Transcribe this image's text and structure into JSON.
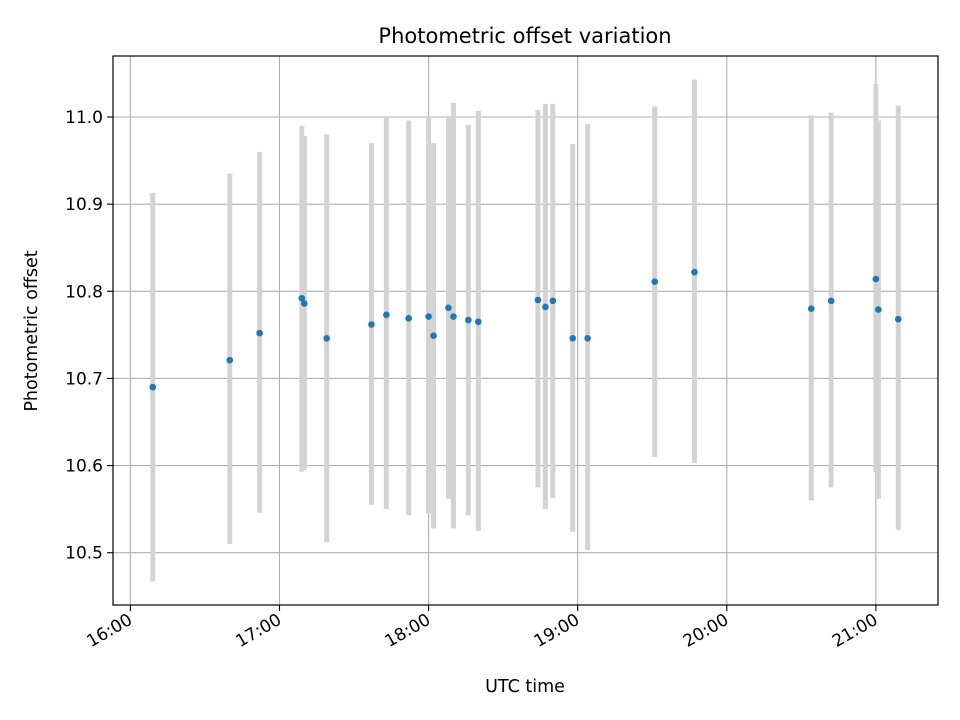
{
  "chart_data": {
    "type": "scatter",
    "title": "Photometric offset variation",
    "xlabel": "UTC time",
    "ylabel": "Photometric offset",
    "x_tick_labels": [
      "16:00",
      "17:00",
      "18:00",
      "19:00",
      "20:00",
      "21:00"
    ],
    "y_tick_labels": [
      "10.5",
      "10.6",
      "10.7",
      "10.8",
      "10.9",
      "11.0"
    ],
    "x_ticks": [
      "16:00",
      "17:00",
      "18:00",
      "19:00",
      "20:00",
      "21:00"
    ],
    "y_ticks": [
      10.5,
      10.6,
      10.7,
      10.8,
      10.9,
      11.0
    ],
    "xlim": [
      "15:53",
      "21:25"
    ],
    "ylim": [
      10.44,
      11.07
    ],
    "grid": true,
    "marker_color": "#1f77b4",
    "errorbar_color": "#d3d3d3",
    "points": [
      {
        "t": "16:09",
        "y": 10.69,
        "low": 10.467,
        "high": 10.913
      },
      {
        "t": "16:40",
        "y": 10.721,
        "low": 10.51,
        "high": 10.935
      },
      {
        "t": "16:52",
        "y": 10.752,
        "low": 10.546,
        "high": 10.96
      },
      {
        "t": "17:09",
        "y": 10.792,
        "low": 10.593,
        "high": 10.99
      },
      {
        "t": "17:10",
        "y": 10.786,
        "low": 10.595,
        "high": 10.978
      },
      {
        "t": "17:19",
        "y": 10.746,
        "low": 10.512,
        "high": 10.98
      },
      {
        "t": "17:37",
        "y": 10.762,
        "low": 10.555,
        "high": 10.97
      },
      {
        "t": "17:43",
        "y": 10.773,
        "low": 10.55,
        "high": 11.0
      },
      {
        "t": "17:52",
        "y": 10.769,
        "low": 10.543,
        "high": 10.996
      },
      {
        "t": "18:00",
        "y": 10.771,
        "low": 10.545,
        "high": 11.0
      },
      {
        "t": "18:02",
        "y": 10.749,
        "low": 10.528,
        "high": 10.97
      },
      {
        "t": "18:08",
        "y": 10.781,
        "low": 10.562,
        "high": 11.0
      },
      {
        "t": "18:10",
        "y": 10.771,
        "low": 10.528,
        "high": 11.016
      },
      {
        "t": "18:16",
        "y": 10.767,
        "low": 10.543,
        "high": 10.991
      },
      {
        "t": "18:20",
        "y": 10.765,
        "low": 10.525,
        "high": 11.007
      },
      {
        "t": "18:44",
        "y": 10.79,
        "low": 10.575,
        "high": 11.008
      },
      {
        "t": "18:47",
        "y": 10.782,
        "low": 10.55,
        "high": 11.015
      },
      {
        "t": "18:50",
        "y": 10.789,
        "low": 10.563,
        "high": 11.015
      },
      {
        "t": "18:58",
        "y": 10.746,
        "low": 10.524,
        "high": 10.969
      },
      {
        "t": "19:04",
        "y": 10.746,
        "low": 10.503,
        "high": 10.992
      },
      {
        "t": "19:31",
        "y": 10.811,
        "low": 10.61,
        "high": 11.012
      },
      {
        "t": "19:47",
        "y": 10.822,
        "low": 10.603,
        "high": 11.043
      },
      {
        "t": "20:34",
        "y": 10.78,
        "low": 10.56,
        "high": 11.002
      },
      {
        "t": "20:42",
        "y": 10.789,
        "low": 10.575,
        "high": 11.005
      },
      {
        "t": "21:00",
        "y": 10.814,
        "low": 10.592,
        "high": 11.038
      },
      {
        "t": "21:01",
        "y": 10.779,
        "low": 10.562,
        "high": 10.996
      },
      {
        "t": "21:09",
        "y": 10.768,
        "low": 10.526,
        "high": 11.013
      }
    ]
  }
}
